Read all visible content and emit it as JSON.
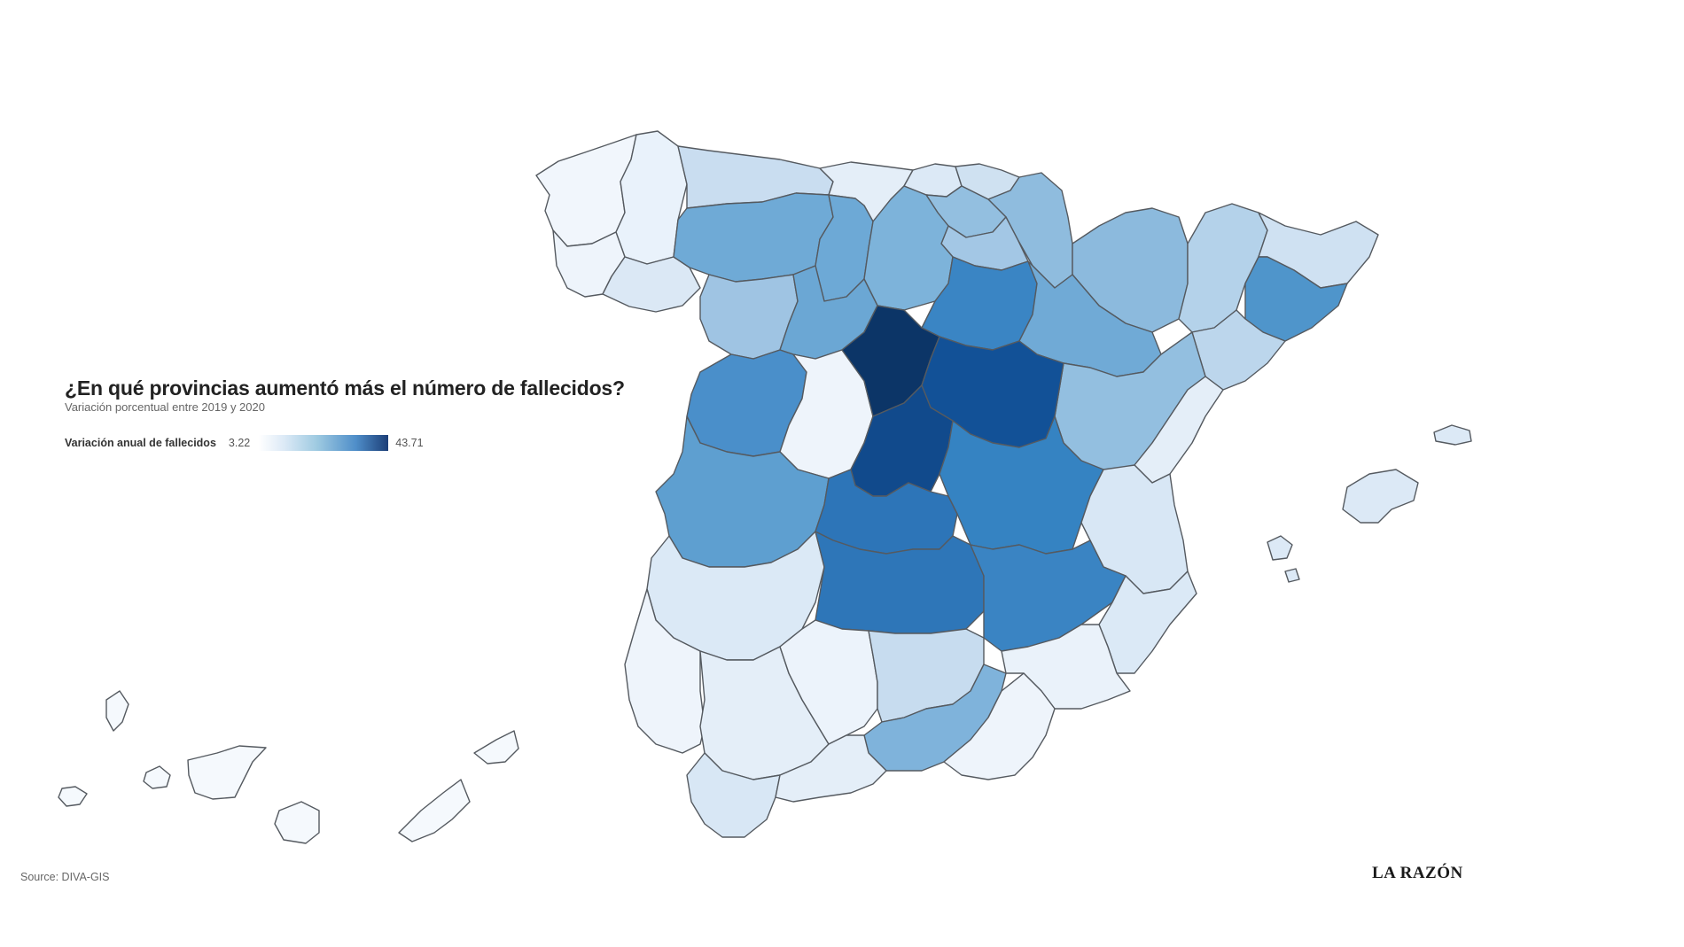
{
  "chart": {
    "title": "¿En qué provincias aumentó más el número de fallecidos?",
    "subtitle": "Variación porcentual entre 2019 y 2020",
    "legend": {
      "label": "Variación anual de fallecidos",
      "min": "3.22",
      "max": "43.71",
      "color_low": "#ffffff",
      "color_high": "#1c3f78"
    }
  },
  "footer": {
    "source": "Source: DIVA-GIS",
    "logo": "LA RAZÓN"
  },
  "regions": [
    {
      "name": "A Coruña",
      "color": "#f1f6fc"
    },
    {
      "name": "Lugo",
      "color": "#e9f2fb"
    },
    {
      "name": "Pontevedra",
      "color": "#eef4fb"
    },
    {
      "name": "Ourense",
      "color": "#dbe8f5"
    },
    {
      "name": "Asturias",
      "color": "#c9ddf0"
    },
    {
      "name": "Cantabria",
      "color": "#e4eef8"
    },
    {
      "name": "Bizkaia",
      "color": "#dce9f6"
    },
    {
      "name": "Gipuzkoa",
      "color": "#cfe1f1"
    },
    {
      "name": "Navarra",
      "color": "#8fbcde"
    },
    {
      "name": "Araba",
      "color": "#93bfe0"
    },
    {
      "name": "La Rioja",
      "color": "#a3c7e5"
    },
    {
      "name": "León",
      "color": "#6faad6"
    },
    {
      "name": "Palencia",
      "color": "#6da9d6"
    },
    {
      "name": "Burgos",
      "color": "#7db3da"
    },
    {
      "name": "Zamora",
      "color": "#9fc4e3"
    },
    {
      "name": "Valladolid",
      "color": "#6ba7d4"
    },
    {
      "name": "Soria",
      "color": "#3a85c4"
    },
    {
      "name": "Huesca",
      "color": "#8cbadd"
    },
    {
      "name": "Zaragoza",
      "color": "#70aad6"
    },
    {
      "name": "Lleida",
      "color": "#b4d2ea"
    },
    {
      "name": "Girona",
      "color": "#cfe1f2"
    },
    {
      "name": "Barcelona",
      "color": "#4f95cb"
    },
    {
      "name": "Tarragona",
      "color": "#bcd6ec"
    },
    {
      "name": "Teruel",
      "color": "#93bfe0"
    },
    {
      "name": "Salamanca",
      "color": "#4a8fca"
    },
    {
      "name": "Ávila",
      "color": "#5a9ccf"
    },
    {
      "name": "Segovia",
      "color": "#0c3567"
    },
    {
      "name": "Guadalajara",
      "color": "#125197"
    },
    {
      "name": "Madrid",
      "color": "#114a8c"
    },
    {
      "name": "Cáceres",
      "color": "#5e9fd0"
    },
    {
      "name": "Toledo",
      "color": "#2d75b8"
    },
    {
      "name": "Cuenca",
      "color": "#3583c2"
    },
    {
      "name": "Castellón",
      "color": "#e4eef8"
    },
    {
      "name": "Valencia",
      "color": "#d8e7f5"
    },
    {
      "name": "Badajoz",
      "color": "#dbe9f6"
    },
    {
      "name": "Ciudad Real",
      "color": "#2e76b8"
    },
    {
      "name": "Albacete",
      "color": "#3a84c3"
    },
    {
      "name": "Alicante",
      "color": "#dbe9f6"
    },
    {
      "name": "Huelva",
      "color": "#eef4fb"
    },
    {
      "name": "Sevilla",
      "color": "#e4eef8"
    },
    {
      "name": "Córdoba",
      "color": "#ecf3fb"
    },
    {
      "name": "Jaén",
      "color": "#c7dcef"
    },
    {
      "name": "Murcia",
      "color": "#eaf2fa"
    },
    {
      "name": "Granada",
      "color": "#7fb3db"
    },
    {
      "name": "Almería",
      "color": "#eaf2fa"
    },
    {
      "name": "Cádiz",
      "color": "#d8e7f5"
    },
    {
      "name": "Málaga",
      "color": "#e4eef8"
    },
    {
      "name": "Mallorca",
      "color": "#dce9f6"
    },
    {
      "name": "Menorca",
      "color": "#dce9f6"
    },
    {
      "name": "Ibiza",
      "color": "#dce9f6"
    },
    {
      "name": "Formentera",
      "color": "#dce9f6"
    },
    {
      "name": "La Palma",
      "color": "#f5f9fd"
    },
    {
      "name": "Tenerife",
      "color": "#f5f9fd"
    },
    {
      "name": "La Gomera",
      "color": "#f5f9fd"
    },
    {
      "name": "El Hierro",
      "color": "#f5f9fd"
    },
    {
      "name": "Gran Canaria",
      "color": "#f5f9fd"
    },
    {
      "name": "Fuerteventura",
      "color": "#f5f9fd"
    },
    {
      "name": "Lanzarote",
      "color": "#f5f9fd"
    }
  ]
}
